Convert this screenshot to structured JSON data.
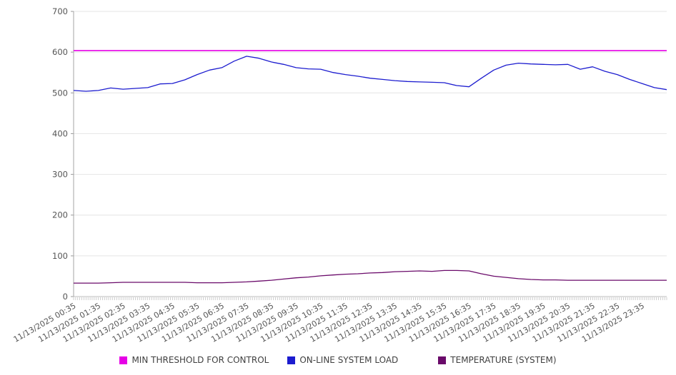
{
  "chart_data": {
    "type": "line",
    "title": "",
    "xlabel": "",
    "ylabel": "",
    "ylim": [
      0,
      700
    ],
    "y_ticks": [
      0,
      100,
      200,
      300,
      400,
      500,
      600,
      700
    ],
    "grid": "horizontal",
    "legend_position": "bottom",
    "grid_color": "#e4e4e4",
    "axis_color": "#a6a6a6",
    "tick_text_color": "#555555",
    "minor_ticks_count": 288,
    "x_labels": [
      "11/13/2025 00:35",
      "11/13/2025 01:35",
      "11/13/2025 02:35",
      "11/13/2025 03:35",
      "11/13/2025 04:35",
      "11/13/2025 05:35",
      "11/13/2025 06:35",
      "11/13/2025 07:35",
      "11/13/2025 08:35",
      "11/13/2025 09:35",
      "11/13/2025 10:35",
      "11/13/2025 11:35",
      "11/13/2025 12:35",
      "11/13/2025 13:35",
      "11/13/2025 14:35",
      "11/13/2025 15:35",
      "11/13/2025 16:35",
      "11/13/2025 17:35",
      "11/13/2025 18:35",
      "11/13/2025 19:35",
      "11/13/2025 20:35",
      "11/13/2025 21:35",
      "11/13/2025 22:35",
      "11/13/2025 23:35"
    ],
    "series": [
      {
        "name": "MIN THRESHOLD FOR CONTROL",
        "color": "#e600e6",
        "style": "horizontal-threshold",
        "value": 604
      },
      {
        "name": "ON-LINE SYSTEM LOAD",
        "color": "#1c1ccf",
        "values": [
          506,
          504,
          506,
          512,
          509,
          511,
          513,
          522,
          523,
          532,
          545,
          556,
          562,
          578,
          590,
          585,
          576,
          570,
          562,
          559,
          558,
          550,
          545,
          541,
          536,
          533,
          530,
          528,
          527,
          526,
          525,
          518,
          515,
          536,
          556,
          568,
          573,
          571,
          570,
          569,
          570,
          558,
          564,
          553,
          545,
          533,
          523,
          513,
          508
        ]
      },
      {
        "name": "TEMPERATURE (SYSTEM)",
        "color": "#6a0a6a",
        "values": [
          33,
          33,
          33,
          34,
          35,
          35,
          35,
          35,
          35,
          35,
          34,
          34,
          34,
          35,
          36,
          38,
          40,
          43,
          46,
          48,
          51,
          53,
          55,
          56,
          58,
          59,
          61,
          62,
          63,
          62,
          64,
          64,
          63,
          56,
          50,
          47,
          44,
          42,
          41,
          41,
          40,
          40,
          40,
          40,
          40,
          40,
          40,
          40,
          40
        ]
      }
    ]
  }
}
